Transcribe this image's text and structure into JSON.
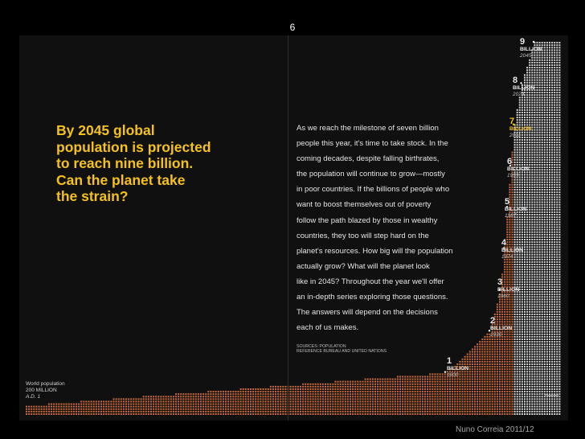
{
  "page": {
    "slide_number": "6",
    "credit": "Nuno Correia 2011/12"
  },
  "headline": {
    "lines": [
      "By 2045 global",
      "population is projected",
      "to reach nine billion.",
      "Can the planet take",
      "the strain?"
    ],
    "color": "#f4c21b"
  },
  "body": {
    "lines": [
      "As we reach the milestone of seven billion",
      "people this year, it's time to take stock. In the",
      "coming decades, despite falling birthrates,",
      "the population will continue to grow—mostly",
      "in poor countries. If the billions of people who",
      "want to boost themselves out of poverty",
      "follow the path blazed by those in wealthy",
      "countries, they too will step hard on the",
      "planet's resources. How big will the population",
      "actually grow? What will the planet look",
      "like in 2045? Throughout the year we'll offer",
      "an in-depth series exploring those questions.",
      "The answers will depend on the decisions",
      "each of us makes."
    ]
  },
  "sources": {
    "line1": "SOURCES: POPULATION",
    "line2": "REFERENCE BUREAU AND UNITED NATIONS"
  },
  "world_population": {
    "title": "World population",
    "value": "200 MILLION",
    "year": "A.D. 1"
  },
  "milestones": [
    {
      "number": "1",
      "unit": "BILLION",
      "year": "1800",
      "current": false
    },
    {
      "number": "2",
      "unit": "BILLION",
      "year": "1930",
      "current": false
    },
    {
      "number": "3",
      "unit": "BILLION",
      "year": "1960",
      "current": false
    },
    {
      "number": "4",
      "unit": "BILLION",
      "year": "1974",
      "current": false
    },
    {
      "number": "5",
      "unit": "BILLION",
      "year": "1987",
      "current": false
    },
    {
      "number": "6",
      "unit": "BILLION",
      "year": "1999",
      "current": false
    },
    {
      "number": "7",
      "unit": "BILLION",
      "year": "2011",
      "current": true
    },
    {
      "number": "8",
      "unit": "BILLION",
      "year": "2024",
      "current": false
    },
    {
      "number": "9",
      "unit": "BILLION",
      "year": "2045",
      "current": false
    }
  ],
  "projected_label": "Projected",
  "chart_data": {
    "type": "area",
    "x": [
      1,
      1800,
      1930,
      1960,
      1974,
      1987,
      1999,
      2011,
      2024,
      2045
    ],
    "y": [
      0.2,
      1,
      2,
      3,
      4,
      5,
      6,
      7,
      8,
      9
    ],
    "ylabel": "",
    "xlabel": "",
    "colors": {
      "historical": "#c96a3c",
      "projected": "#d6d6d6",
      "accent": "#f4c21b"
    }
  }
}
